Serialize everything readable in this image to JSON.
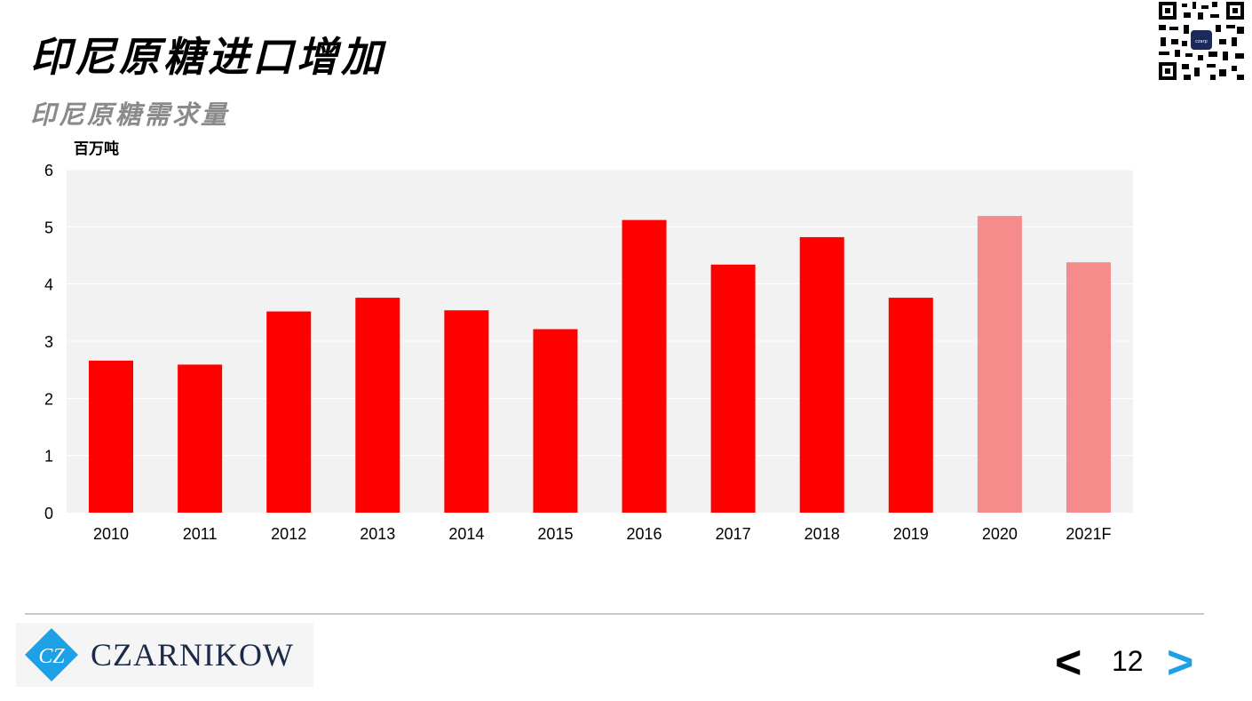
{
  "header": {
    "title": "印尼原糖进口增加",
    "subtitle": "印尼原糖需求量"
  },
  "chart_data": {
    "type": "bar",
    "ylabel": "百万吨",
    "ylim": [
      0,
      6
    ],
    "yticks": [
      0,
      1,
      2,
      3,
      4,
      5,
      6
    ],
    "categories": [
      "2010",
      "2011",
      "2012",
      "2013",
      "2014",
      "2015",
      "2016",
      "2017",
      "2018",
      "2019",
      "2020",
      "2021F"
    ],
    "values": [
      2.66,
      2.59,
      3.52,
      3.76,
      3.54,
      3.21,
      5.12,
      4.34,
      4.82,
      3.76,
      5.19,
      4.38
    ],
    "colors": {
      "actual": "#ff0000",
      "estimate": "#f58b8b",
      "plot_background": "#f2f2f2",
      "grid": "#ffffff"
    },
    "estimate_categories": [
      "2020",
      "2021F"
    ],
    "grid": true
  },
  "footer": {
    "logo_mark": "CZ",
    "brand": "CZARNIKOW",
    "page_number": "12",
    "prev_label": "<",
    "next_label": ">"
  }
}
